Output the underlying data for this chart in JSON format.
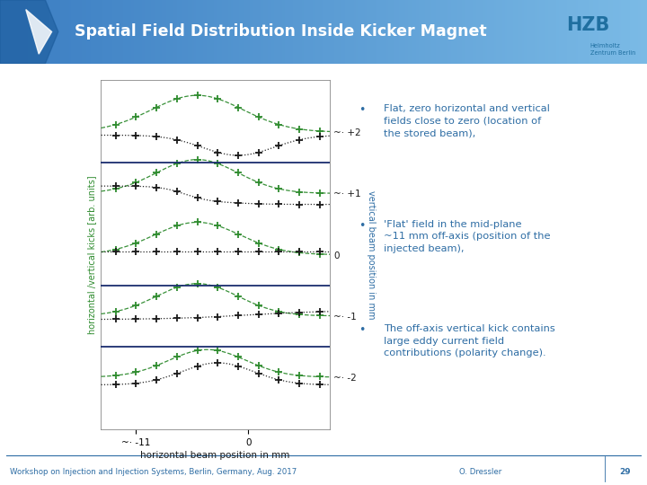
{
  "title": "Spatial Field Distribution Inside Kicker Magnet",
  "title_color": "white",
  "header_bg_left": "#3a7fc1",
  "header_bg_right": "#7bbce0",
  "bullet_points": [
    "Flat, zero horizontal and vertical\nfields close to zero (location of\nthe stored beam),",
    "'Flat' field in the mid-plane\n~11 mm off-axis (position of the\ninjected beam),",
    "The off-axis vertical kick contains\nlarge eddy current field\ncontributions (polarity change)."
  ],
  "bullet_color": "#2e6da4",
  "xlabel": "horizontal beam position in mm",
  "ylabel_left": "horizontal /vertical kicks [arb. units]",
  "ylabel_right": "vertical beam position in mm",
  "ylabel_left_color": "#2e8b2e",
  "ylabel_right_color": "#2e6da4",
  "x_ticks": [
    -11,
    0
  ],
  "right_axis_labels": [
    "~· +2",
    "~· +1",
    "0",
    "~· -1",
    "~· -2"
  ],
  "right_axis_positions": [
    2,
    1,
    0,
    -1,
    -2
  ],
  "hline_positions": [
    1.5,
    -0.5,
    -1.5
  ],
  "footer_text_left": "Workshop on Injection and Injection Systems, Berlin, Germany, Aug. 2017",
  "footer_text_right": "O. Dressler",
  "footer_page": "29",
  "footer_color": "#2e6da4",
  "bg_color": "white",
  "green_color": "#2e8b2e",
  "black_color": "#1a1a1a",
  "hline_color": "#1a2d6e",
  "plot_bg": "white",
  "hzb_color": "#1f6fa0",
  "spine_color": "#888888"
}
